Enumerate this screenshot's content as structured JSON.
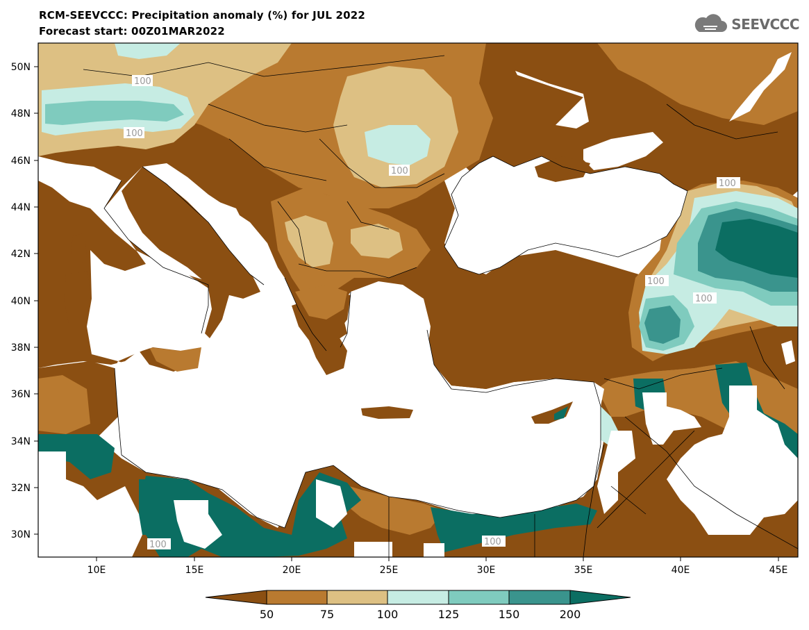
{
  "header": {
    "title": "RCM-SEEVCCC: Precipitation anomaly (%) for JUL 2022",
    "subtitle": "Forecast start: 00Z01MAR2022"
  },
  "logo": {
    "text": "SEEVCCC",
    "icon": "cloud-icon"
  },
  "map": {
    "projection": "lat-lon",
    "lon_range": [
      7,
      46
    ],
    "lat_range": [
      29,
      51
    ],
    "y_ticks": [
      "50N",
      "48N",
      "46N",
      "44N",
      "42N",
      "40N",
      "38N",
      "36N",
      "34N",
      "32N",
      "30N"
    ],
    "x_ticks": [
      "10E",
      "15E",
      "20E",
      "25E",
      "30E",
      "35E",
      "40E",
      "45E"
    ],
    "contour_labels": [
      "100",
      "100",
      "100",
      "100",
      "100",
      "100",
      "100",
      "100"
    ]
  },
  "colorbar": {
    "levels": [
      "50",
      "75",
      "100",
      "125",
      "150",
      "200"
    ],
    "colors": [
      "#8b4f12",
      "#b97a30",
      "#ddc083",
      "#c6ece3",
      "#7fcbbe",
      "#3a948d",
      "#0b6e62"
    ]
  },
  "colors": {
    "very_dry": "#8b4f12",
    "dry": "#b97a30",
    "slightly_dry": "#ddc083",
    "slightly_wet": "#c6ece3",
    "wet": "#7fcbbe",
    "very_wet": "#3a948d",
    "extreme_wet": "#0b6e62",
    "sea": "#ffffff"
  }
}
